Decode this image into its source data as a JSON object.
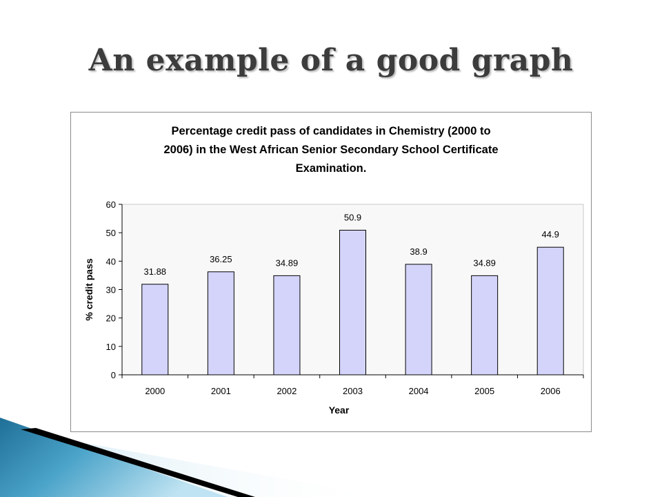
{
  "slide": {
    "title": "An example of a good graph"
  },
  "chart_data": {
    "type": "bar",
    "title_lines": [
      "Percentage credit pass of candidates in Chemistry (2000 to",
      "2006) in the West African Senior Secondary School Certificate",
      "Examination."
    ],
    "categories": [
      "2000",
      "2001",
      "2002",
      "2003",
      "2004",
      "2005",
      "2006"
    ],
    "values": [
      31.88,
      36.25,
      34.89,
      50.9,
      38.9,
      34.89,
      44.9
    ],
    "data_labels": [
      "31.88",
      "36.25",
      "34.89",
      "50.9",
      "38.9",
      "34.89",
      "44.9"
    ],
    "xlabel": "Year",
    "ylabel": "% credit pass",
    "ylim": [
      0,
      60
    ],
    "yticks": [
      "0",
      "10",
      "20",
      "30",
      "40",
      "50",
      "60"
    ],
    "grid": false,
    "legend": "none",
    "colors": {
      "bar_fill": "#d4d4fb",
      "bar_stroke": "#000000",
      "plot_background": "#f8f8f8",
      "decor_blue": "#2a7fa8",
      "decor_black": "#000000"
    }
  }
}
